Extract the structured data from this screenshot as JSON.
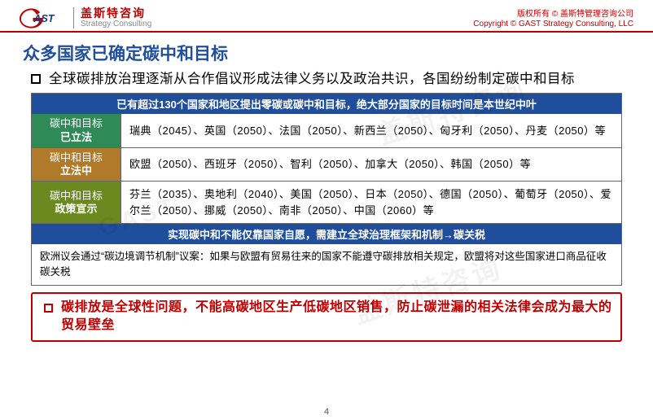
{
  "header": {
    "logo_cn": "盖斯特咨询",
    "logo_en": "Strategy Consulting",
    "copyright_cn": "版权所有 © 盖斯特管理咨询公司",
    "copyright_en": "Copyright © GAST Strategy Consulting, LLC"
  },
  "title": "众多国家已确定碳中和目标",
  "intro": "全球碳排放治理逐渐从合作倡议形成法律义务以及政治共识，各国纷纷制定碳中和目标",
  "band_top": "已有超过130个国家和地区提出零碳或碳中和目标，绝大部分国家的目标时间是本世纪中叶",
  "rows": [
    {
      "bg": "#2e8a57",
      "label_top": "碳中和目标",
      "label_sub": "已立法",
      "content": "瑞典（2045）、英国（2050）、法国（2050）、新西兰（2050）、匈牙利（2050）、丹麦（2050）等"
    },
    {
      "bg": "#b07a2a",
      "label_top": "碳中和目标",
      "label_sub": "立法中",
      "content": "欧盟（2050）、西班牙（2050）、智利（2050）、加拿大（2050）、韩国（2050）等"
    },
    {
      "bg": "#6a8a1f",
      "label_top": "碳中和目标",
      "label_sub": "政策宣示",
      "content": "芬兰（2035）、奥地利（2040）、美国（2050）、日本（2050）、德国（2050）、葡萄牙（2050）、爱尔兰（2050）、挪威（2050）、南非（2050）、中国（2060）等"
    }
  ],
  "band_mid": "实现碳中和不能仅靠国家自愿，需建立全球治理框架和机制→碳关税",
  "note": "欧洲议会通过“碳边境调节机制”议案：如果与欧盟有贸易往来的国家不能遵守碳排放相关规定，欧盟将对这些国家进口商品征收碳关税",
  "callout": "碳排放是全球性问题，不能高碳地区生产低碳地区销售，防止碳泄漏的相关法律会成为最大的贸易壁垒",
  "page_number": "4",
  "watermark_text": "盖斯特咨询",
  "colors": {
    "brand_red": "#c00000",
    "title_blue": "#1f4e9c",
    "band_blue": "#1f4e9c"
  }
}
